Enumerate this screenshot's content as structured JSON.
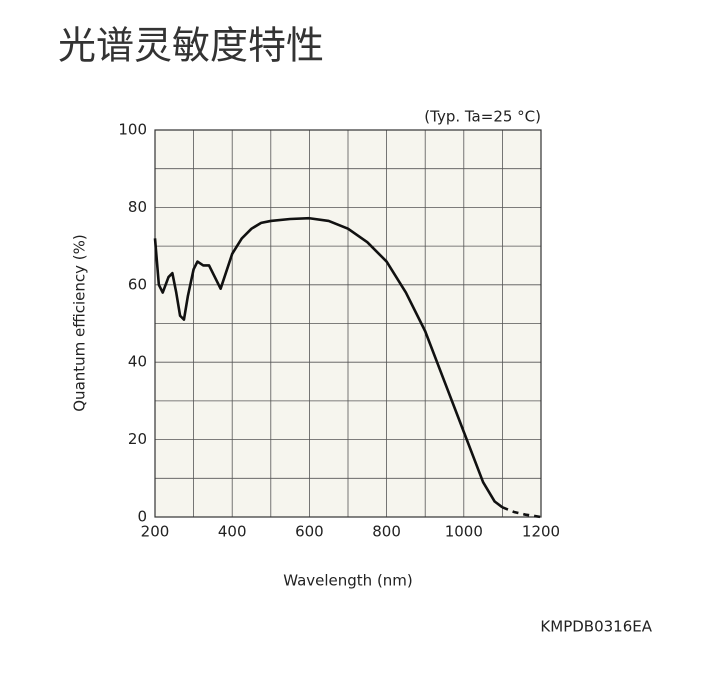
{
  "chart_data": {
    "type": "line",
    "title": "光谱灵敏度特性",
    "annotation": "(Typ. Ta=25 °C)",
    "xlabel": "Wavelength (nm)",
    "ylabel": "Quantum efficiency (%)",
    "footer": "KMPDB0316EA",
    "xlim": [
      200,
      1200
    ],
    "ylim": [
      0,
      100
    ],
    "xticks": [
      200,
      400,
      600,
      800,
      1000,
      1200
    ],
    "yticks": [
      0,
      20,
      40,
      60,
      80,
      100
    ],
    "grid_x": [
      200,
      300,
      400,
      500,
      600,
      700,
      800,
      900,
      1000,
      1100,
      1200
    ],
    "grid_y": [
      0,
      10,
      20,
      30,
      40,
      50,
      60,
      70,
      80,
      90,
      100
    ],
    "plot_background": "#f6f5ee",
    "series": [
      {
        "color": "#111111",
        "dashed": false,
        "x": [
          200,
          210,
          220,
          235,
          245,
          255,
          265,
          275,
          285,
          300,
          310,
          325,
          340,
          355,
          370,
          380,
          400,
          425,
          450,
          475,
          500,
          550,
          600,
          650,
          700,
          750,
          800,
          850,
          900,
          950,
          1000,
          1050,
          1080,
          1100
        ],
        "values": [
          72,
          60,
          58,
          62,
          63,
          58,
          52,
          51,
          57,
          64,
          66,
          65,
          65,
          62,
          59,
          62,
          68,
          72,
          74.5,
          76,
          76.5,
          77,
          77.2,
          76.5,
          74.5,
          71,
          66,
          58,
          48,
          35,
          22,
          9,
          4,
          2.5
        ]
      },
      {
        "color": "#111111",
        "dashed": true,
        "x": [
          1100,
          1130,
          1160,
          1200
        ],
        "values": [
          2.5,
          1.3,
          0.6,
          0
        ]
      }
    ]
  }
}
